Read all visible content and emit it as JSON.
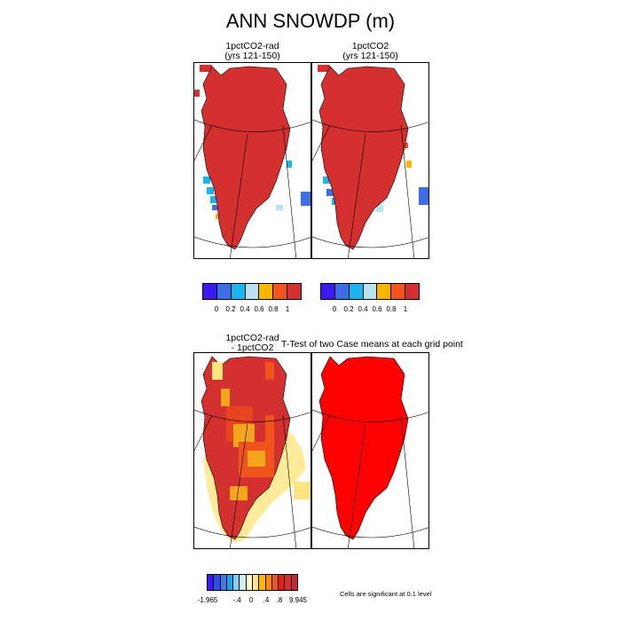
{
  "title": "ANN SNOWDP (m)",
  "panels": {
    "top_left": {
      "line1": "1pctCO2-rad",
      "line2": "(yrs 121-150)"
    },
    "top_right": {
      "line1": "1pctCO2",
      "line2": "(yrs 121-150)"
    },
    "bottom_left": {
      "line1": "1pctCO2-rad",
      "line2": "- 1pctCO2"
    },
    "bottom_right": {
      "title": "T-Test of two Case means at each grid point"
    }
  },
  "colorbar_top": {
    "colors": [
      "#3a1aef",
      "#3c6ee8",
      "#1cb4ee",
      "#b7e2f2",
      "#f7b700",
      "#f3531c",
      "#d43030"
    ],
    "labels": [
      "0",
      "0.2",
      "0.4",
      "0.6",
      "0.8",
      "1"
    ]
  },
  "colorbar_bottom": {
    "colors": [
      "#3a1aef",
      "#2f50e8",
      "#3c7cea",
      "#1ca5ee",
      "#7fcff4",
      "#cfeefa",
      "#fffbc8",
      "#fde680",
      "#fcb800",
      "#f58a0a",
      "#f0531c",
      "#e02010",
      "#d43030",
      "#c82838"
    ],
    "labels": [
      "-1.965",
      "-.4",
      "0",
      ".4",
      ".8",
      "9.945"
    ]
  },
  "note": "Cells are significant at 0.1 level",
  "colors": {
    "snow_high": "#d43030",
    "significant": "#ff0000",
    "diff_mid": "#e8441f",
    "diff_orange": "#f4a51c",
    "diff_yellow": "#fde680"
  }
}
